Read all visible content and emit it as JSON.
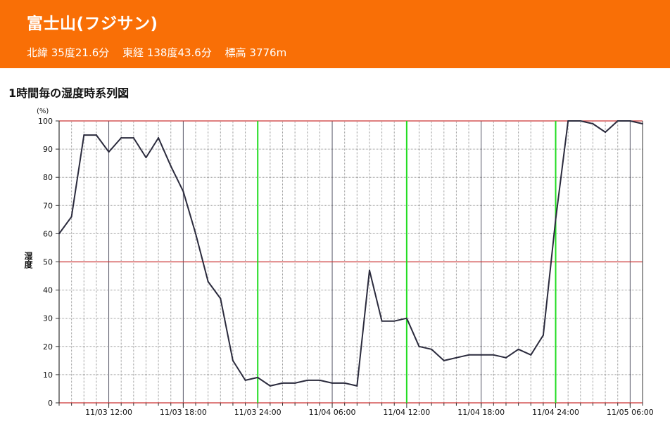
{
  "header": {
    "station_name": "富士山(フジサン)",
    "latitude": "北緯 35度21.6分",
    "longitude": "東経 138度43.6分",
    "elevation": "標高 3776m"
  },
  "chart_heading": "1時間毎の湿度時系列図",
  "colors": {
    "header_bg": "#f96f06",
    "line": "#2b2b3d",
    "major_grid": "#cc3333",
    "day_boundary": "#22dd22",
    "six_hour_grid": "#555566",
    "minor_grid": "#9a9a9a"
  },
  "chart_data": {
    "type": "line",
    "title": "",
    "xlabel": "",
    "ylabel": "湿度",
    "yunit": "(%)",
    "ylim": [
      0,
      100
    ],
    "yticks": [
      0,
      10,
      20,
      30,
      40,
      50,
      60,
      70,
      80,
      90,
      100
    ],
    "x_start": "11/03 08:00",
    "x_end": "11/05 06:00",
    "xtick_labels": [
      {
        "hour": 4,
        "label": "11/03 12:00"
      },
      {
        "hour": 10,
        "label": "11/03 18:00"
      },
      {
        "hour": 16,
        "label": "11/03 24:00"
      },
      {
        "hour": 22,
        "label": "11/04 06:00"
      },
      {
        "hour": 28,
        "label": "11/04 12:00"
      },
      {
        "hour": 34,
        "label": "11/04 18:00"
      },
      {
        "hour": 40,
        "label": "11/04 24:00"
      },
      {
        "hour": 46,
        "label": "11/05 06:00"
      }
    ],
    "day_boundaries": [
      "11/03 24:00",
      "11/04 12:00",
      "11/04 24:00"
    ],
    "series": [
      {
        "values": [
          60,
          66,
          95,
          95,
          89,
          94,
          94,
          87,
          94,
          84,
          75,
          60,
          43,
          37,
          15,
          8,
          9,
          6,
          7,
          7,
          8,
          8,
          7,
          7,
          6,
          47,
          29,
          29,
          30,
          20,
          19,
          15,
          16,
          17,
          17,
          17,
          16,
          19,
          17,
          24,
          65,
          100,
          100,
          99,
          96,
          100,
          100,
          99
        ]
      }
    ]
  }
}
